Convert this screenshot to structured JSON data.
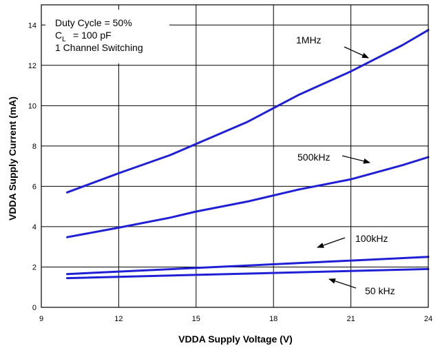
{
  "chart_data": {
    "type": "line",
    "xlabel": "VDDA Supply Voltage (V)",
    "ylabel": "VDDA Supply Current (mA)",
    "xlim": [
      9,
      24
    ],
    "ylim": [
      0,
      15
    ],
    "xticks": [
      "9",
      "12",
      "15",
      "18",
      "21",
      "24"
    ],
    "yticks": [
      "0",
      "2",
      "4",
      "6",
      "8",
      "10",
      "12",
      "14"
    ],
    "grid": true,
    "line_color": "#1f1fd6",
    "annotations": {
      "duty_cycle": "Duty Cycle = 50%",
      "cl_symbol": "C",
      "cl_subscript": "L",
      "cl_value": "= 100 pF",
      "channel": "1 Channel Switching"
    },
    "series": [
      {
        "name": "1MHz",
        "x": [
          10,
          12,
          14,
          15,
          17,
          19,
          21,
          23,
          24
        ],
        "y": [
          5.7,
          6.65,
          7.55,
          8.1,
          9.2,
          10.55,
          11.7,
          13.0,
          13.75
        ]
      },
      {
        "name": "500kHz",
        "x": [
          10,
          12,
          14,
          15,
          17,
          19,
          21,
          23,
          24
        ],
        "y": [
          3.48,
          3.95,
          4.45,
          4.75,
          5.25,
          5.85,
          6.35,
          7.05,
          7.45
        ]
      },
      {
        "name": "100kHz",
        "x": [
          10,
          24
        ],
        "y": [
          1.65,
          2.5
        ]
      },
      {
        "name": "50 kHz",
        "x": [
          10,
          24
        ],
        "y": [
          1.45,
          1.9
        ]
      }
    ]
  }
}
